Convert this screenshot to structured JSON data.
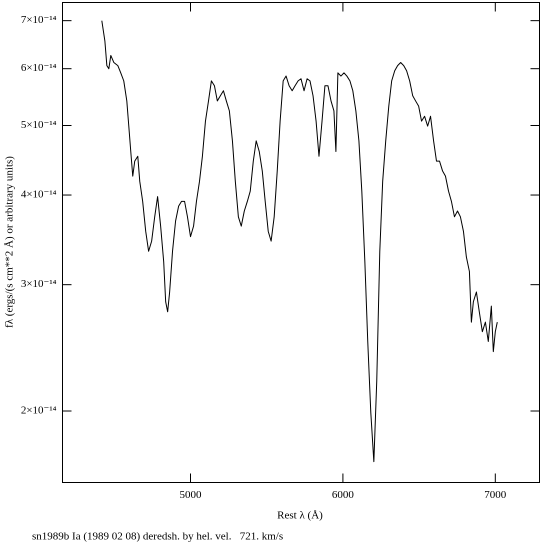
{
  "chart_data": {
    "type": "line",
    "ylabel": "fλ (ergs/(s cm**2 Å) or arbitrary units)",
    "xlabel": "Rest λ (Å)",
    "caption": "sn1989b Ia (1989 02 08) deredsh. by hel. vel.   721. km/s",
    "color": "#000000",
    "yscale": "log",
    "xlim": [
      4160,
      7290
    ],
    "ylim": [
      1.59e-14,
      7.42e-14
    ],
    "xticks": [
      5000,
      6000,
      7000
    ],
    "yticks": [
      {
        "value": 2e-14,
        "label": "2×10⁻¹⁴"
      },
      {
        "value": 3e-14,
        "label": "3×10⁻¹⁴"
      },
      {
        "value": 4e-14,
        "label": "4×10⁻¹⁴"
      },
      {
        "value": 5e-14,
        "label": "5×10⁻¹⁴"
      },
      {
        "value": 6e-14,
        "label": "6×10⁻¹⁴"
      },
      {
        "value": 7e-14,
        "label": "7×10⁻¹⁴"
      }
    ],
    "x": [
      4418,
      4438,
      4451,
      4464,
      4477,
      4497,
      4523,
      4542,
      4562,
      4582,
      4595,
      4608,
      4621,
      4634,
      4654,
      4667,
      4686,
      4706,
      4725,
      4745,
      4765,
      4784,
      4804,
      4824,
      4837,
      4850,
      4863,
      4882,
      4902,
      4922,
      4941,
      4961,
      4980,
      5000,
      5020,
      5039,
      5059,
      5078,
      5098,
      5118,
      5137,
      5157,
      5176,
      5196,
      5216,
      5235,
      5255,
      5275,
      5294,
      5314,
      5333,
      5353,
      5373,
      5392,
      5412,
      5431,
      5451,
      5471,
      5490,
      5510,
      5529,
      5549,
      5569,
      5588,
      5608,
      5627,
      5647,
      5667,
      5686,
      5706,
      5725,
      5745,
      5765,
      5784,
      5804,
      5824,
      5843,
      5863,
      5882,
      5902,
      5922,
      5941,
      5954,
      5967,
      5987,
      6007,
      6026,
      6046,
      6065,
      6085,
      6105,
      6124,
      6144,
      6163,
      6183,
      6203,
      6222,
      6242,
      6261,
      6281,
      6301,
      6320,
      6340,
      6359,
      6379,
      6399,
      6418,
      6438,
      6458,
      6477,
      6497,
      6516,
      6536,
      6556,
      6575,
      6595,
      6614,
      6634,
      6654,
      6673,
      6693,
      6712,
      6732,
      6752,
      6771,
      6791,
      6810,
      6830,
      6843,
      6856,
      6876,
      6895,
      6915,
      6935,
      6954,
      6974,
      6987,
      7000,
      7013
    ],
    "values": [
      7e-14,
      6.56e-14,
      6.06e-14,
      6e-14,
      6.26e-14,
      6.12e-14,
      6.06e-14,
      5.92e-14,
      5.77e-14,
      5.41e-14,
      4.99e-14,
      4.6e-14,
      4.25e-14,
      4.46e-14,
      4.53e-14,
      4.18e-14,
      3.92e-14,
      3.56e-14,
      3.34e-14,
      3.45e-14,
      3.73e-14,
      3.98e-14,
      3.62e-14,
      3.23e-14,
      2.84e-14,
      2.75e-14,
      2.93e-14,
      3.34e-14,
      3.68e-14,
      3.86e-14,
      3.92e-14,
      3.92e-14,
      3.73e-14,
      3.5e-14,
      3.62e-14,
      3.92e-14,
      4.18e-14,
      4.53e-14,
      5.07e-14,
      5.41e-14,
      5.77e-14,
      5.68e-14,
      5.41e-14,
      5.5e-14,
      5.59e-14,
      5.41e-14,
      5.24e-14,
      4.76e-14,
      4.18e-14,
      3.73e-14,
      3.62e-14,
      3.8e-14,
      3.92e-14,
      4.05e-14,
      4.46e-14,
      4.76e-14,
      4.6e-14,
      4.32e-14,
      3.92e-14,
      3.56e-14,
      3.45e-14,
      3.73e-14,
      4.32e-14,
      5.07e-14,
      5.77e-14,
      5.86e-14,
      5.68e-14,
      5.59e-14,
      5.68e-14,
      5.77e-14,
      5.81e-14,
      5.59e-14,
      5.81e-14,
      5.77e-14,
      5.5e-14,
      5.07e-14,
      4.53e-14,
      5.07e-14,
      5.68e-14,
      5.68e-14,
      5.41e-14,
      5.24e-14,
      4.6e-14,
      5.92e-14,
      5.86e-14,
      5.92e-14,
      5.86e-14,
      5.77e-14,
      5.59e-14,
      5.24e-14,
      4.76e-14,
      4.05e-14,
      3.23e-14,
      2.5e-14,
      1.99e-14,
      1.7e-14,
      2.2e-14,
      3.34e-14,
      4.18e-14,
      4.76e-14,
      5.32e-14,
      5.77e-14,
      5.96e-14,
      6.06e-14,
      6.12e-14,
      6.06e-14,
      5.96e-14,
      5.77e-14,
      5.5e-14,
      5.41e-14,
      5.32e-14,
      5.07e-14,
      5.15e-14,
      4.99e-14,
      5.15e-14,
      4.76e-14,
      4.46e-14,
      4.46e-14,
      4.32e-14,
      4.25e-14,
      4.05e-14,
      3.92e-14,
      3.73e-14,
      3.8e-14,
      3.73e-14,
      3.56e-14,
      3.28e-14,
      3.13e-14,
      2.66e-14,
      2.84e-14,
      2.93e-14,
      2.75e-14,
      2.58e-14,
      2.66e-14,
      2.5e-14,
      2.8e-14,
      2.42e-14,
      2.58e-14,
      2.66e-14
    ]
  }
}
